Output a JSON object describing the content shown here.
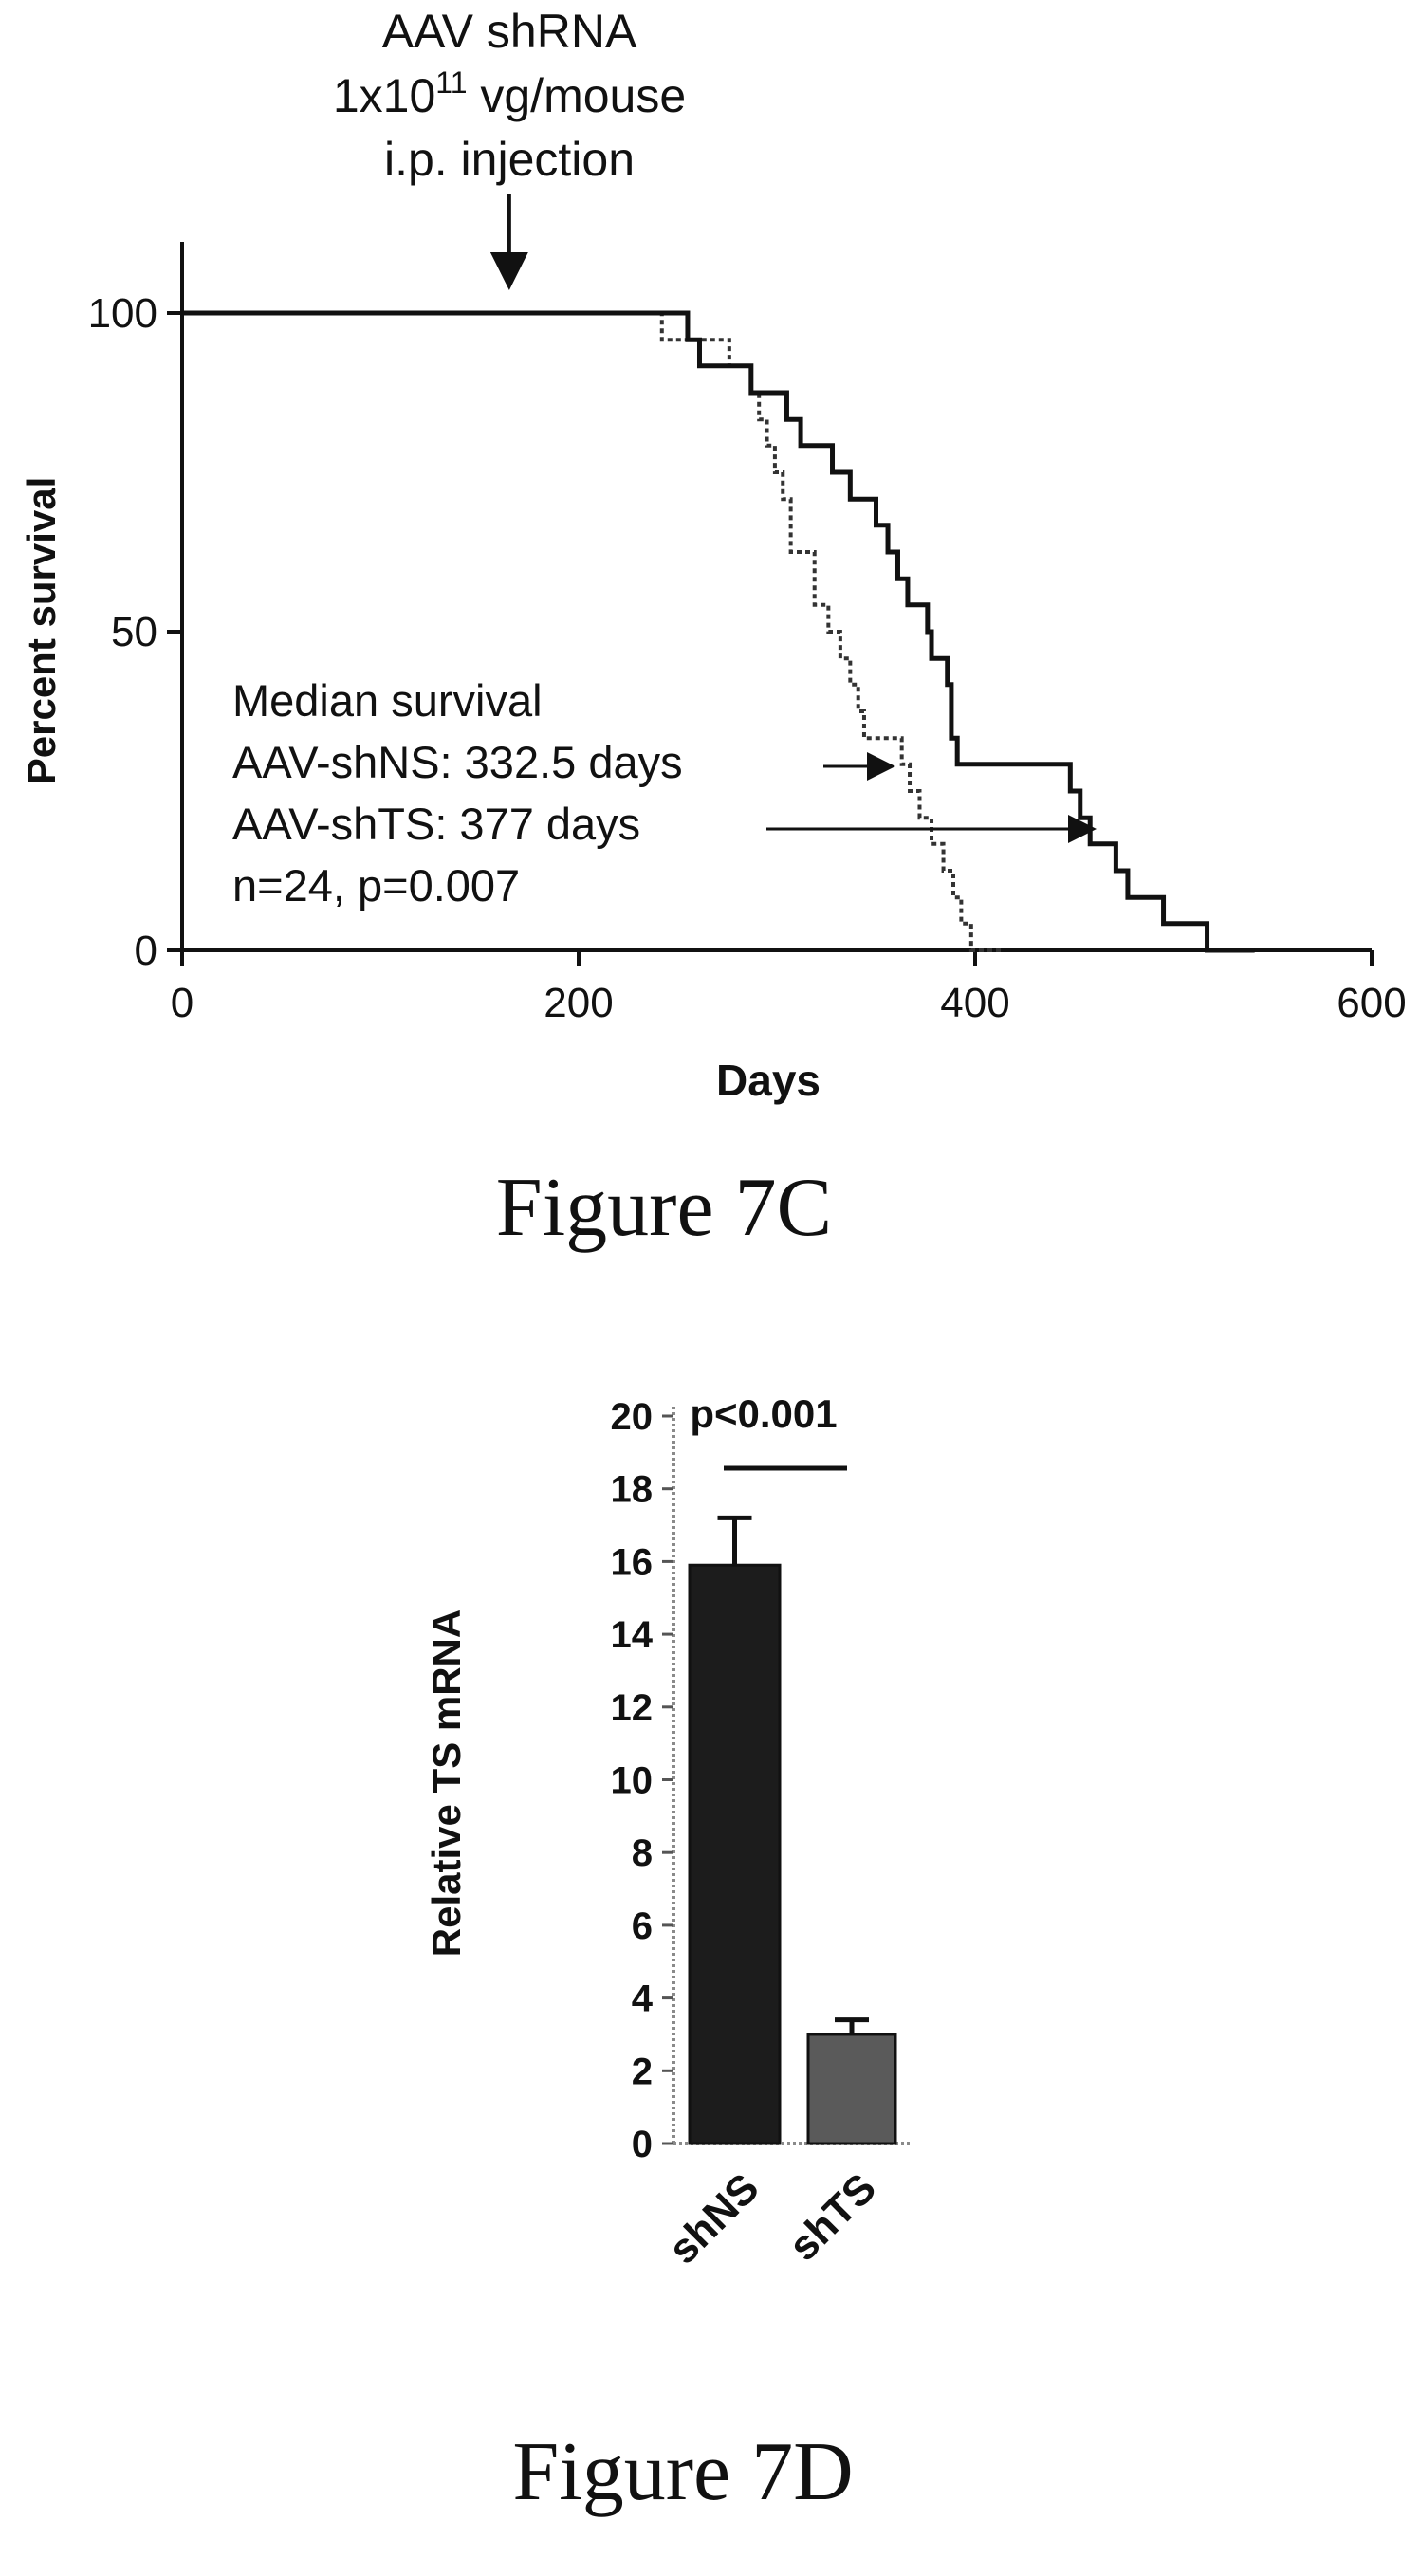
{
  "colors": {
    "ink": "#111111",
    "bar_shNS": "#1c1c1c",
    "bar_shTS": "#5a5a5a",
    "dotted_axis": "#8a8a8a"
  },
  "figure_c": {
    "caption": "Figure 7C",
    "annotation": {
      "line1": "AAV shRNA",
      "line2_prefix": "1x10",
      "line2_sup": "11",
      "line2_suffix": " vg/mouse",
      "line3": "i.p. injection",
      "arrow_at_day": 165
    },
    "legend_text": {
      "line1": "Median survival",
      "line2": "AAV-shNS: 332.5 days",
      "line3": "AAV-shTS: 377 days",
      "line4": "n=24, p=0.007"
    }
  },
  "figure_d": {
    "caption": "Figure 7D",
    "significance": "p<0.001"
  },
  "chart_data": [
    {
      "type": "line",
      "xlabel": "Days",
      "ylabel": "Percent survival",
      "xlim": [
        0,
        600
      ],
      "ylim": [
        0,
        100
      ],
      "xticks": [
        0,
        200,
        400,
        600
      ],
      "yticks": [
        0,
        50,
        100
      ],
      "series": [
        {
          "name": "AAV-shNS",
          "style": "dotted",
          "x": [
            0,
            242,
            251,
            276,
            282,
            287,
            291,
            295,
            299,
            303,
            307,
            313,
            319,
            322,
            326,
            332,
            337,
            341,
            344,
            350,
            356,
            363,
            367,
            372,
            378,
            384,
            389,
            393,
            398,
            405,
            414
          ],
          "y": [
            100,
            95.8,
            95.8,
            91.7,
            91.7,
            87.5,
            83.3,
            79.2,
            75.0,
            70.8,
            62.5,
            62.5,
            54.2,
            54.2,
            50.0,
            45.8,
            41.7,
            37.5,
            33.3,
            33.3,
            33.3,
            29.2,
            25.0,
            20.8,
            16.7,
            12.5,
            8.3,
            4.2,
            0.0,
            0.0,
            0.0
          ]
        },
        {
          "name": "AAV-shTS",
          "style": "solid",
          "x": [
            0,
            255,
            261,
            270,
            287,
            298,
            305,
            312,
            328,
            337,
            350,
            356,
            361,
            366,
            371,
            376,
            378,
            386,
            388,
            391,
            448,
            453,
            458,
            464,
            471,
            477,
            483,
            495,
            517,
            541
          ],
          "y": [
            100,
            95.8,
            91.7,
            91.7,
            87.5,
            87.5,
            83.3,
            79.2,
            75.0,
            70.8,
            66.7,
            62.5,
            58.3,
            54.2,
            54.2,
            50.0,
            45.8,
            41.7,
            33.3,
            29.2,
            25.0,
            20.8,
            16.7,
            16.7,
            12.5,
            8.3,
            8.3,
            4.2,
            0.0,
            0.0
          ]
        }
      ]
    },
    {
      "type": "bar",
      "ylabel": "Relative TS mRNA",
      "ylim": [
        0,
        20
      ],
      "yticks": [
        0,
        2,
        4,
        6,
        8,
        10,
        12,
        14,
        16,
        18,
        20
      ],
      "categories": [
        "shNS",
        "shTS"
      ],
      "values": [
        15.9,
        3.0
      ],
      "errors": [
        1.3,
        0.4
      ]
    }
  ]
}
